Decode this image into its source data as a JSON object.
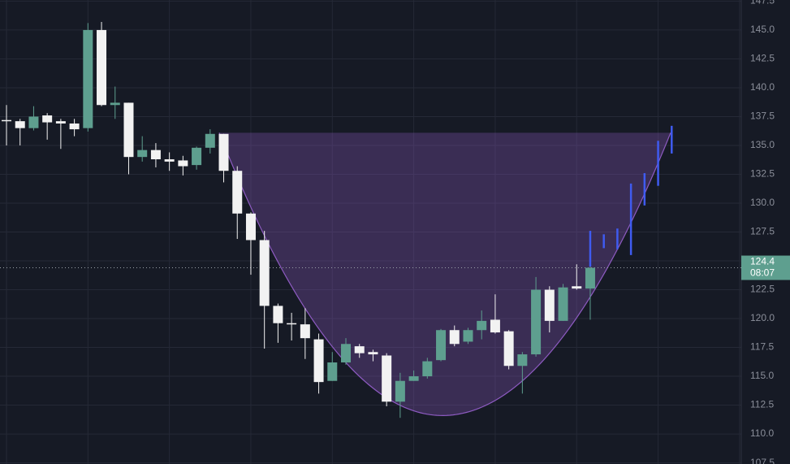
{
  "chart_data": {
    "type": "candlestick",
    "ylim": [
      107.4,
      147.6
    ],
    "yticks": [
      107.5,
      {
        "value": 110,
        "label": "110.0"
      },
      112.5,
      {
        "value": 115,
        "label": "115.0"
      },
      117.5,
      {
        "value": 120,
        "label": "120.0"
      },
      122.5,
      {
        "value": 125,
        "label": "125.0"
      },
      127.5,
      {
        "value": 130,
        "label": "130.0"
      },
      132.5,
      {
        "value": 135,
        "label": "135.0"
      },
      137.5,
      {
        "value": 140,
        "label": "140.0"
      },
      142.5,
      {
        "value": 145,
        "label": "145.0"
      },
      147.5
    ],
    "grid": true,
    "up_color": "#5e9f8f",
    "down_color": "#f2f2f2",
    "open": [
      137.2,
      137.1,
      136.5,
      137.6,
      137.1,
      136.9,
      136.5,
      145.0,
      138.5,
      138.7,
      134.0,
      134.6,
      133.8,
      133.7,
      133.3,
      134.8,
      136.0,
      132.8,
      129.1,
      126.8,
      121.1,
      119.6,
      119.5,
      118.2,
      114.6,
      116.2,
      117.6,
      117.1,
      116.8,
      112.8,
      114.6,
      115.0,
      116.4,
      119.0,
      118.0,
      119.0,
      119.9,
      118.9,
      115.9,
      116.9,
      122.5,
      119.8,
      122.8,
      122.6
    ],
    "high": [
      138.5,
      137.3,
      138.4,
      137.8,
      137.3,
      137.3,
      145.6,
      145.7,
      140.1,
      138.7,
      135.8,
      135.2,
      134.4,
      134.1,
      134.9,
      136.4,
      136.0,
      133.2,
      129.2,
      127.6,
      121.3,
      120.5,
      120.9,
      118.7,
      117.1,
      118.3,
      117.8,
      117.3,
      117.0,
      115.3,
      115.5,
      116.6,
      119.1,
      119.4,
      119.2,
      120.7,
      122.1,
      119.0,
      117.1,
      123.6,
      122.8,
      123.0,
      124.7,
      124.5
    ],
    "low": [
      135.0,
      135.0,
      136.3,
      135.5,
      134.7,
      135.8,
      136.2,
      138.4,
      137.3,
      132.5,
      133.6,
      133.1,
      132.8,
      132.4,
      132.9,
      134.3,
      131.8,
      126.9,
      123.8,
      117.4,
      117.9,
      118.1,
      116.5,
      113.5,
      114.6,
      116.0,
      116.6,
      116.3,
      112.4,
      111.4,
      114.6,
      114.8,
      116.3,
      117.6,
      117.8,
      118.2,
      118.7,
      115.6,
      113.5,
      116.7,
      118.8,
      119.8,
      122.5,
      119.9
    ],
    "close": [
      137.1,
      136.5,
      137.5,
      137.0,
      136.9,
      136.4,
      145.0,
      138.5,
      138.7,
      134.0,
      134.6,
      133.8,
      133.6,
      133.2,
      134.8,
      136.0,
      132.8,
      129.1,
      126.8,
      121.1,
      119.6,
      119.5,
      118.3,
      114.5,
      116.2,
      117.8,
      117.0,
      116.9,
      112.8,
      114.6,
      115.0,
      116.3,
      119.0,
      117.8,
      119.0,
      119.8,
      118.8,
      115.9,
      116.9,
      122.5,
      119.8,
      122.7,
      122.6,
      124.4
    ],
    "projection": {
      "color": "#3f5bf0",
      "high": [
        127.6,
        127.3,
        127.8,
        131.7,
        132.6,
        135.4,
        136.7
      ],
      "low": [
        124.5,
        126.1,
        126.0,
        125.5,
        129.8,
        131.5,
        134.3
      ]
    },
    "pattern": {
      "rim": 136.1,
      "low": 111.6,
      "color": "#8e5bc2"
    },
    "last_price": 124.4,
    "countdown": "08:07"
  }
}
